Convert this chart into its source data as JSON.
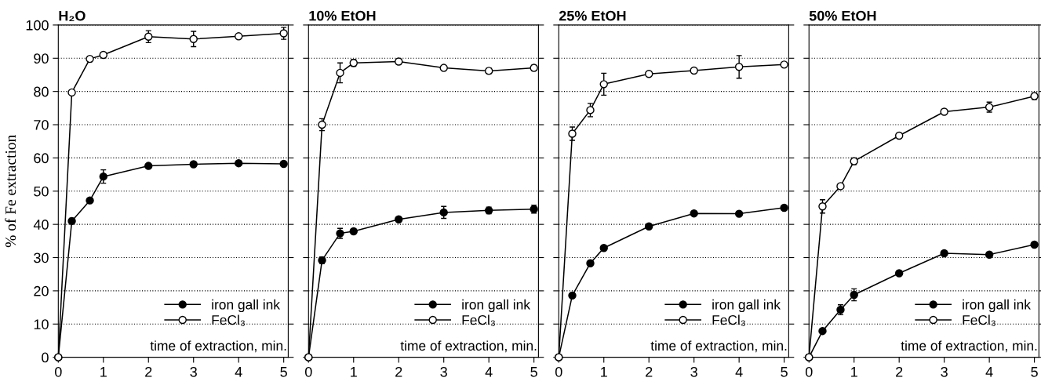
{
  "chart_data": [
    {
      "type": "line",
      "title": "H₂O",
      "xlabel": "time of extraction, min.",
      "ylabel": "% of Fe extraction",
      "x": [
        0,
        0.3,
        0.7,
        1,
        2,
        3,
        4,
        5
      ],
      "xlim": [
        0,
        5.1
      ],
      "xticks": [
        0,
        1,
        2,
        3,
        4,
        5
      ],
      "ylim": [
        0,
        100
      ],
      "yticks": [
        0,
        10,
        20,
        30,
        40,
        50,
        60,
        70,
        80,
        90,
        100
      ],
      "grid": "y",
      "legend": "bottom right",
      "marker": "circle",
      "line_style": "solid",
      "series": [
        {
          "name": "iron gall ink",
          "color": "#000000",
          "values": [
            0,
            41,
            47.2,
            54.4,
            57.6,
            58.1,
            58.4,
            58.2
          ],
          "errors": [
            null,
            0.8,
            null,
            2,
            null,
            null,
            null,
            null
          ]
        },
        {
          "name": "FeCl₃",
          "color": "#000000",
          "values": [
            0,
            79.7,
            89.8,
            91,
            96.5,
            95.8,
            96.6,
            97.5
          ],
          "errors": [
            null,
            null,
            0.8,
            null,
            1.8,
            2.3,
            null,
            1.8
          ]
        }
      ]
    },
    {
      "type": "line",
      "title": "10% EtOH",
      "xlabel": "time of extraction, min.",
      "x": [
        0,
        0.3,
        0.7,
        1,
        2,
        3,
        4,
        5
      ],
      "xlim": [
        0,
        5.1
      ],
      "xticks": [
        0,
        1,
        2,
        3,
        4,
        5
      ],
      "ylim": [
        0,
        100
      ],
      "yticks": [
        0,
        10,
        20,
        30,
        40,
        50,
        60,
        70,
        80,
        90,
        100
      ],
      "tick_labels": "x",
      "grid": "y",
      "legend": "bottom right",
      "marker": "circle",
      "line_style": "solid",
      "series": [
        {
          "name": "iron gall ink",
          "color": "#000000",
          "values": [
            0,
            29.2,
            37.3,
            37.9,
            41.5,
            43.6,
            44.2,
            44.6
          ],
          "errors": [
            null,
            1,
            1.5,
            null,
            null,
            1.8,
            1,
            1.2
          ]
        },
        {
          "name": "FeCl₃",
          "color": "#000000",
          "values": [
            0,
            70,
            85.6,
            88.6,
            89,
            87.1,
            86.2,
            87.1
          ],
          "errors": [
            null,
            1.8,
            3,
            1,
            0.8,
            null,
            0.8,
            0.8
          ]
        }
      ]
    },
    {
      "type": "line",
      "title": "25% EtOH",
      "xlabel": "time of extraction, min.",
      "x": [
        0,
        0.3,
        0.7,
        1,
        2,
        3,
        4,
        5
      ],
      "xlim": [
        0,
        5.1
      ],
      "xticks": [
        0,
        1,
        2,
        3,
        4,
        5
      ],
      "ylim": [
        0,
        100
      ],
      "yticks": [
        0,
        10,
        20,
        30,
        40,
        50,
        60,
        70,
        80,
        90,
        100
      ],
      "tick_labels": "x",
      "grid": "y",
      "legend": "bottom right",
      "marker": "circle",
      "line_style": "solid",
      "series": [
        {
          "name": "iron gall ink",
          "color": "#000000",
          "values": [
            0,
            18.6,
            28.3,
            32.9,
            39.4,
            43.3,
            43.2,
            45.0
          ],
          "errors": [
            null,
            null,
            null,
            null,
            null,
            null,
            null,
            null
          ]
        },
        {
          "name": "FeCl₃",
          "color": "#000000",
          "values": [
            0,
            67.3,
            74.4,
            82.2,
            85.3,
            86.3,
            87.4,
            88.1
          ],
          "errors": [
            null,
            2,
            2,
            3.3,
            null,
            null,
            3.4,
            null
          ]
        }
      ]
    },
    {
      "type": "line",
      "title": "50% EtOH",
      "xlabel": "time of extraction, min.",
      "x": [
        0,
        0.3,
        0.7,
        1,
        2,
        3,
        4,
        5
      ],
      "xlim": [
        0,
        5.1
      ],
      "xticks": [
        0,
        1,
        2,
        3,
        4,
        5
      ],
      "ylim": [
        0,
        100
      ],
      "yticks": [
        0,
        10,
        20,
        30,
        40,
        50,
        60,
        70,
        80,
        90,
        100
      ],
      "tick_labels": "x",
      "grid": "y",
      "legend": "bottom right",
      "marker": "circle",
      "line_style": "solid",
      "series": [
        {
          "name": "iron gall ink",
          "color": "#000000",
          "values": [
            0,
            7.9,
            14.3,
            18.8,
            25.3,
            31.3,
            30.9,
            33.9
          ],
          "errors": [
            null,
            null,
            1.5,
            1.8,
            null,
            null,
            null,
            null
          ]
        },
        {
          "name": "FeCl₃",
          "color": "#000000",
          "values": [
            0,
            45.4,
            51.5,
            59.0,
            66.7,
            73.9,
            75.3,
            78.6
          ],
          "errors": [
            null,
            2,
            null,
            1,
            null,
            null,
            1.5,
            1
          ]
        }
      ]
    }
  ]
}
